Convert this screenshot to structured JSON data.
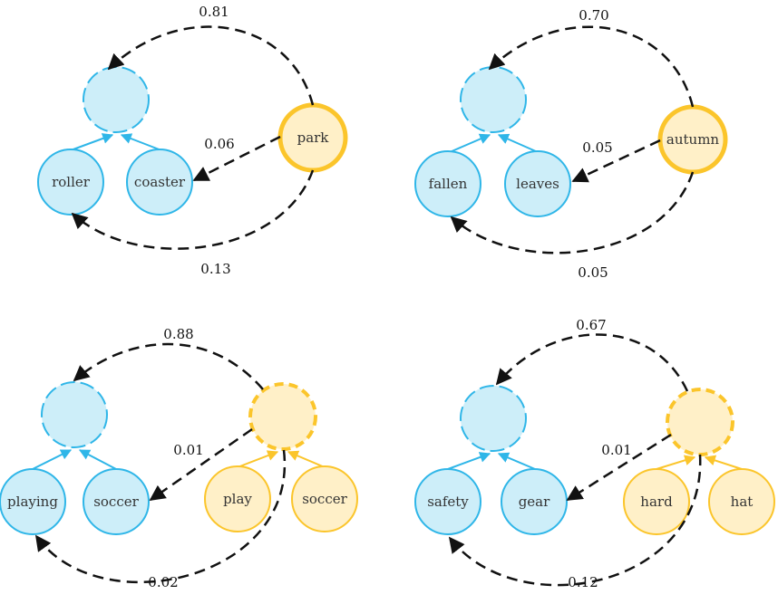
{
  "colors": {
    "blue_fill": "#cdeef9",
    "blue_stroke": "#2fb6e8",
    "orange_fill": "#fff0c8",
    "orange_stroke": "#fbc52b",
    "edge": "#111111"
  },
  "panels": [
    {
      "id": "park",
      "source_words": [
        "park"
      ],
      "target_words": [
        "roller",
        "coaster"
      ],
      "weights": {
        "to_phrase": "0.81",
        "to_second": "0.06",
        "to_first": "0.13"
      }
    },
    {
      "id": "autumn",
      "source_words": [
        "autumn"
      ],
      "target_words": [
        "fallen",
        "leaves"
      ],
      "weights": {
        "to_phrase": "0.70",
        "to_second": "0.05",
        "to_first": "0.05"
      }
    },
    {
      "id": "play-soccer",
      "source_words": [
        "play",
        "soccer"
      ],
      "target_words": [
        "playing",
        "soccer"
      ],
      "weights": {
        "to_phrase": "0.88",
        "to_second": "0.01",
        "to_first": "0.02"
      }
    },
    {
      "id": "hard-hat",
      "source_words": [
        "hard",
        "hat"
      ],
      "target_words": [
        "safety",
        "gear"
      ],
      "weights": {
        "to_phrase": "0.67",
        "to_second": "0.01",
        "to_first": "0.12"
      }
    }
  ]
}
